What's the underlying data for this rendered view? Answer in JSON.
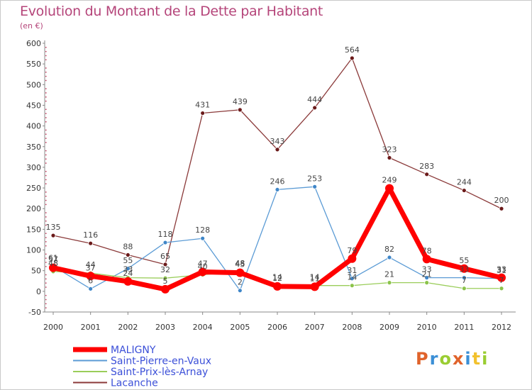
{
  "chart_data": {
    "type": "line",
    "title": "Evolution du Montant de la Dette par Habitant",
    "subtitle": "(en €)",
    "x": [
      "2000",
      "2001",
      "2002",
      "2003",
      "2004",
      "2005",
      "2006",
      "2007",
      "2008",
      "2009",
      "2010",
      "2011",
      "2012"
    ],
    "ylim": [
      -50,
      600
    ],
    "yticks": [
      -50,
      0,
      50,
      100,
      150,
      200,
      250,
      300,
      350,
      400,
      450,
      500,
      550,
      600
    ],
    "grid": false,
    "legend_position": "bottom-left",
    "series": [
      {
        "name": "MALIGNY",
        "color": "#ff0000",
        "point_color": "#ff0000",
        "values": [
          57,
          37,
          24,
          5,
          47,
          45,
          12,
          11,
          79,
          249,
          78,
          55,
          33
        ],
        "labels": [
          "57",
          "37",
          "24",
          "5",
          "47",
          "45",
          "12",
          "11",
          "79",
          "249",
          "78",
          "55",
          "33"
        ]
      },
      {
        "name": "Saint-Pierre-en-Vaux",
        "color": "#5b9bd5",
        "point_color": "#3f86c8",
        "values": [
          61,
          6,
          55,
          118,
          128,
          2,
          246,
          253,
          31,
          82,
          33,
          33,
          31
        ],
        "labels": [
          "61",
          "6",
          "55",
          "118",
          "128",
          "2",
          "246",
          "253",
          "31",
          "82",
          "33",
          "33",
          "31"
        ]
      },
      {
        "name": "Saint-Prix-lès-Arnay",
        "color": "#9acd5a",
        "point_color": "#8bc34a",
        "values": [
          48,
          44,
          33,
          32,
          40,
          48,
          14,
          14,
          14,
          21,
          21,
          7,
          7
        ],
        "labels": [
          "48",
          "44",
          "33",
          "32",
          "40",
          "48",
          "14",
          "14",
          "14",
          "21",
          "21",
          "7",
          "7"
        ]
      },
      {
        "name": "Lacanche",
        "color": "#8b3a3a",
        "point_color": "#6b1a1a",
        "values": [
          135,
          116,
          88,
          65,
          431,
          439,
          343,
          444,
          564,
          323,
          283,
          244,
          200
        ],
        "labels": [
          "135",
          "116",
          "88",
          "65",
          "431",
          "439",
          "343",
          "444",
          "564",
          "323",
          "283",
          "244",
          "200"
        ]
      }
    ]
  },
  "logo": {
    "text": "Proxiti"
  }
}
